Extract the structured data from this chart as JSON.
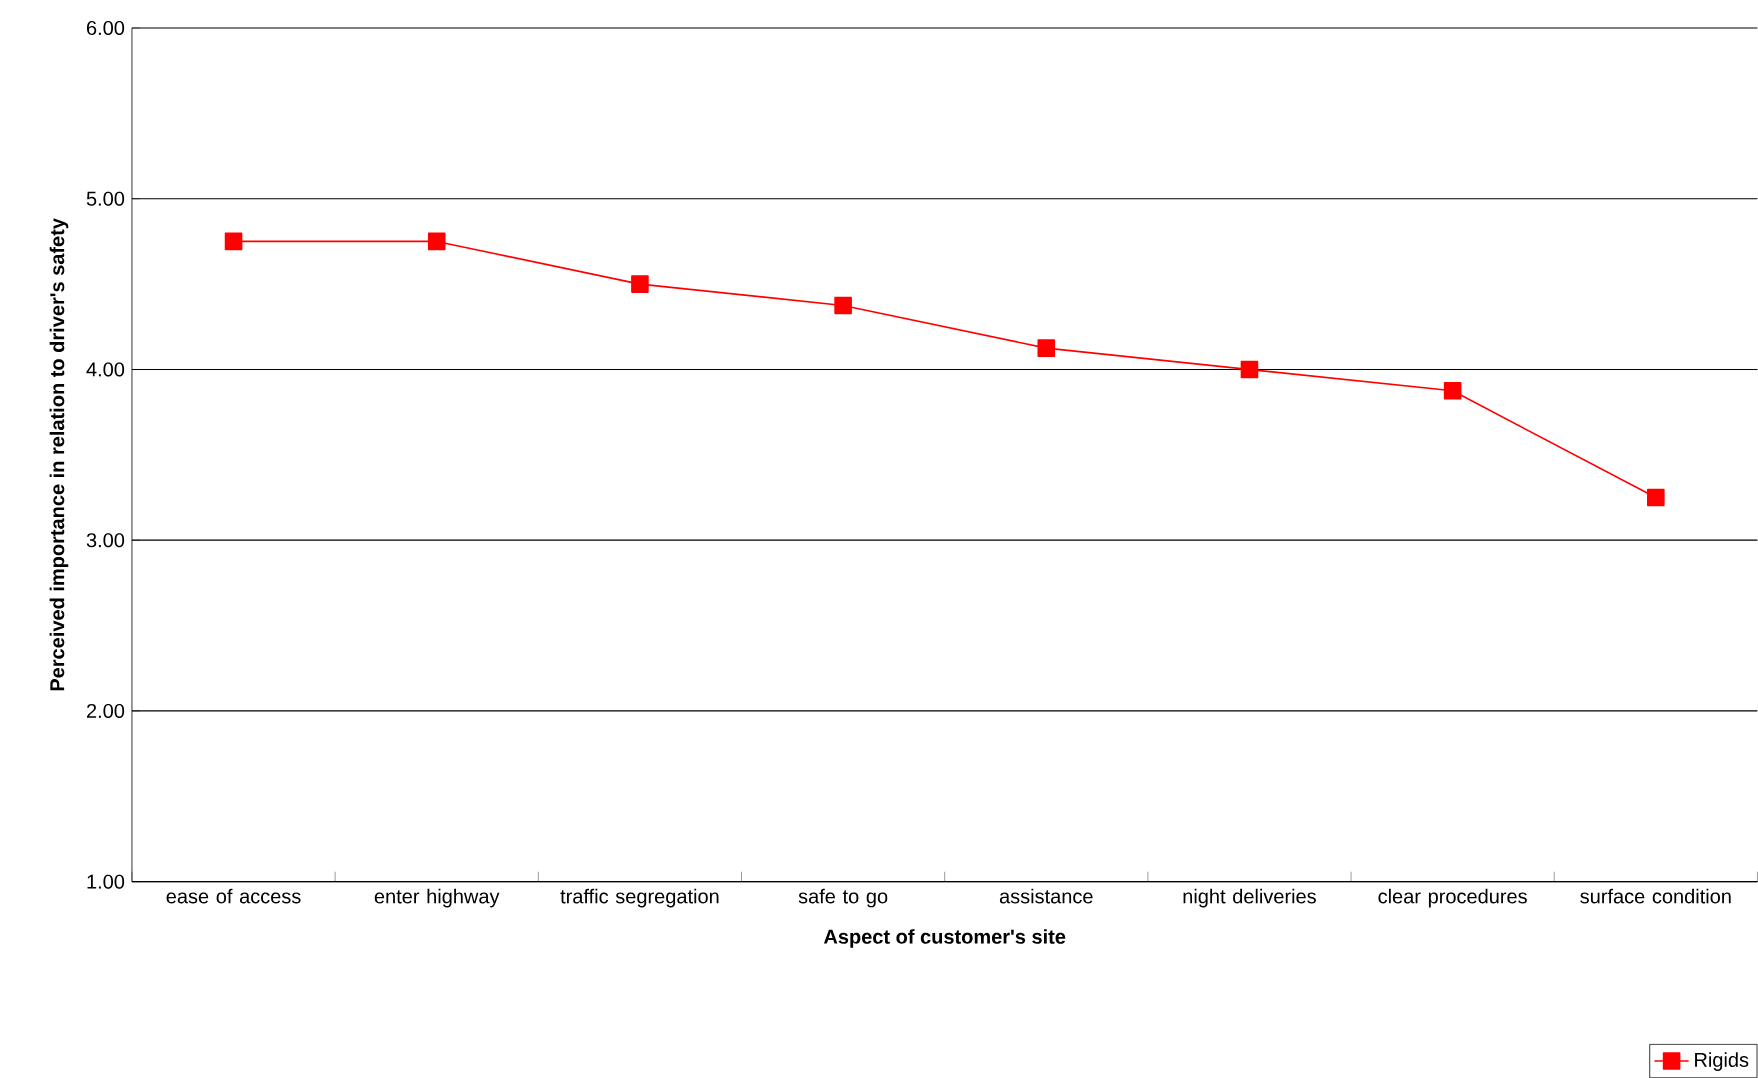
{
  "chart_data": {
    "type": "line",
    "xlabel": "Aspect of customer's site",
    "ylabel": "Perceived importance in relation to driver's safety",
    "categories": [
      "ease of access",
      "enter highway",
      "traffic segregation",
      "safe to go",
      "assistance",
      "night deliveries",
      "clear procedures",
      "surface condition"
    ],
    "series": [
      {
        "name": "Rigids",
        "color": "#ff0000",
        "values": [
          4.75,
          4.75,
          4.5,
          4.375,
          4.125,
          4.0,
          3.875,
          3.25
        ]
      }
    ],
    "ylim": [
      1,
      6
    ],
    "yticks": [
      {
        "value": 1,
        "label": "1.00"
      },
      {
        "value": 2,
        "label": "2.00"
      },
      {
        "value": 3,
        "label": "3.00"
      },
      {
        "value": 4,
        "label": "4.00"
      },
      {
        "value": 5,
        "label": "5.00"
      },
      {
        "value": 6,
        "label": "6.00"
      }
    ],
    "grid": "y",
    "legend": "bottom right",
    "marker": "square",
    "line_style": "solid"
  }
}
